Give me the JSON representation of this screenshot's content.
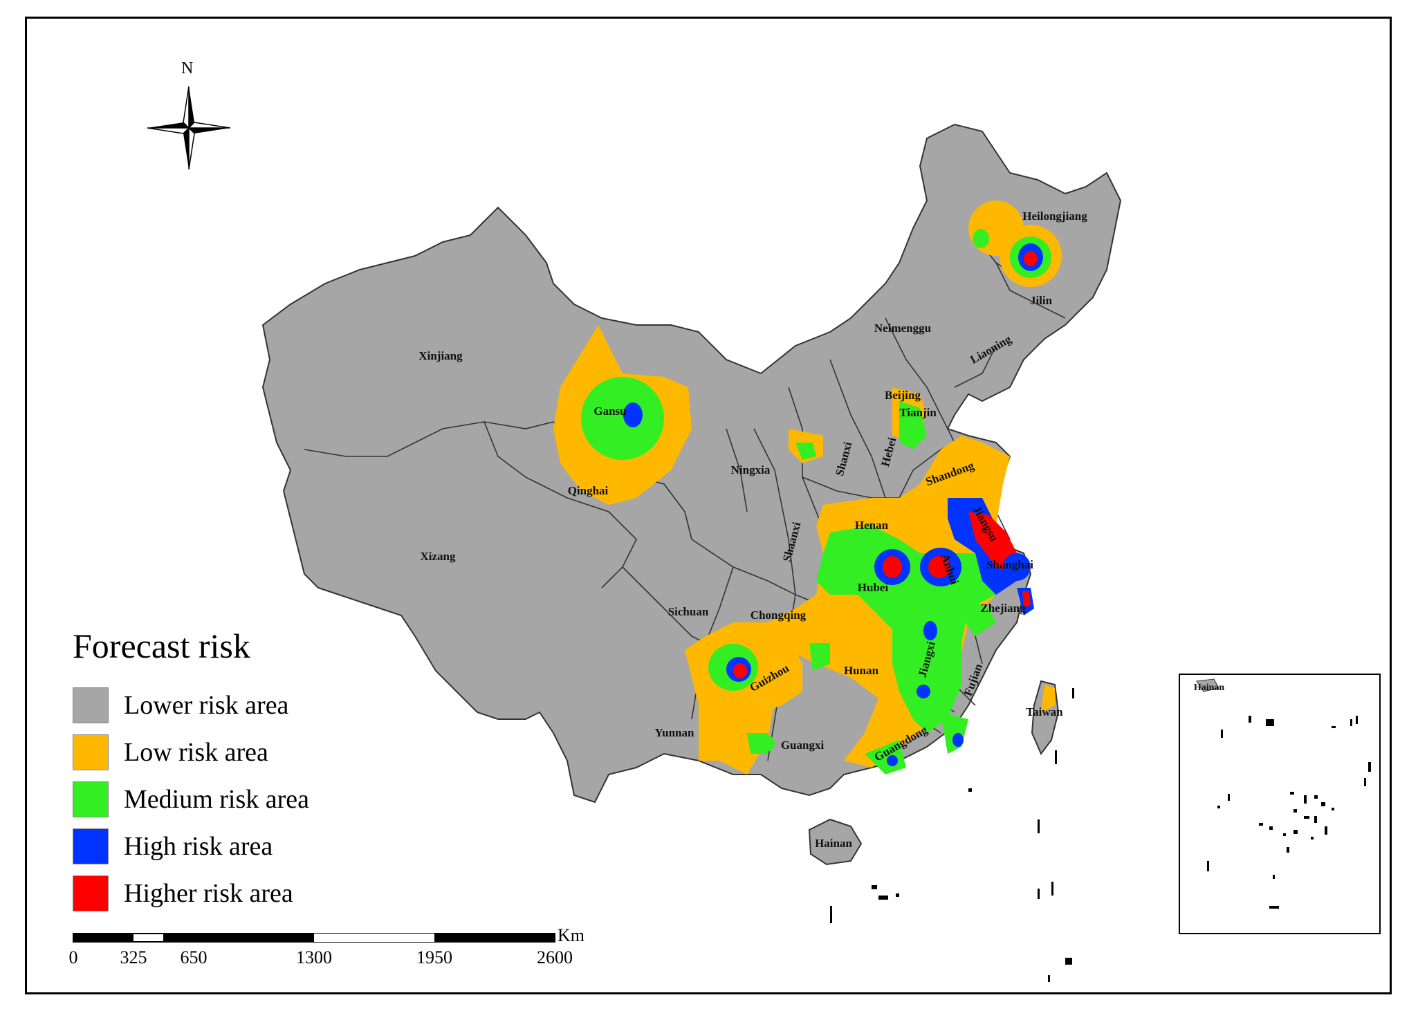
{
  "legend": {
    "title": "Forecast risk",
    "items": [
      {
        "label": "Lower risk area",
        "color": "#a6a6a6"
      },
      {
        "label": "Low risk area",
        "color": "#ffb800"
      },
      {
        "label": "Medium risk area",
        "color": "#33ee22"
      },
      {
        "label": "High risk area",
        "color": "#0033ff"
      },
      {
        "label": "Higher risk area",
        "color": "#ff0000"
      }
    ]
  },
  "scale_bar": {
    "unit": "Km",
    "ticks": [
      "0",
      "325",
      "650",
      "1300",
      "1950",
      "2600"
    ]
  },
  "north_arrow": {
    "label": "N",
    "icon": "compass-rose-icon"
  },
  "provinces": [
    "Heilongjiang",
    "Jilin",
    "Liaoning",
    "Neimenggu",
    "Xinjiang",
    "Gansu",
    "Qinghai",
    "Xizang",
    "Ningxia",
    "Shaanxi",
    "Shanxi",
    "Hebei",
    "Beijing",
    "Tianjin",
    "Shandong",
    "Henan",
    "Jiangsu",
    "Anhui",
    "Shanghai",
    "Hubei",
    "Zhejiang",
    "Sichuan",
    "Chongqing",
    "Guizhou",
    "Hunan",
    "Jiangxi",
    "Fujian",
    "Taiwan",
    "Yunnan",
    "Guangxi",
    "Guangdong",
    "Hainan"
  ],
  "inset_label": "Hainan"
}
